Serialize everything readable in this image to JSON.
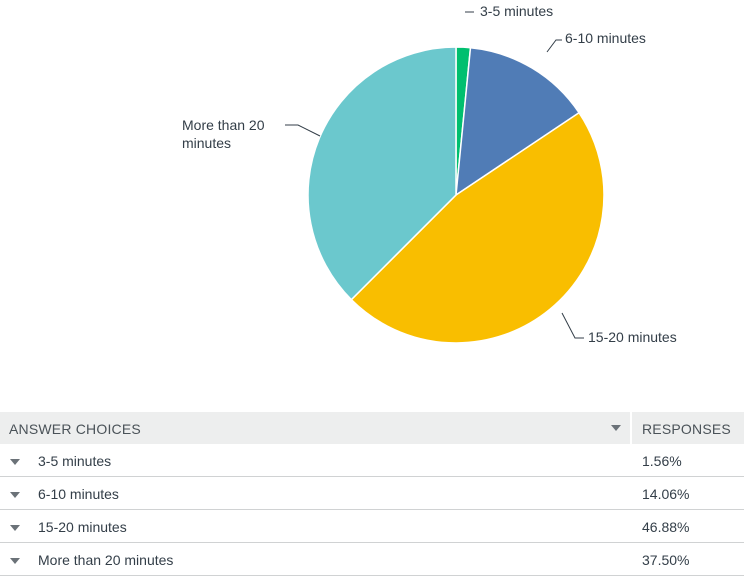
{
  "chart_data": {
    "type": "pie",
    "labels": [
      "3-5 minutes",
      "6-10 minutes",
      "15-20 minutes",
      "More than 20 minutes"
    ],
    "values": [
      1.56,
      14.06,
      46.88,
      37.5
    ],
    "colors": [
      "#00bf6f",
      "#507cb6",
      "#f9be00",
      "#6bc8cd"
    ],
    "start": "12 o'clock, clockwise"
  },
  "table": {
    "header": {
      "choices": "ANSWER CHOICES",
      "responses": "RESPONSES"
    },
    "rows": [
      {
        "choice": "3-5 minutes",
        "response": "1.56%"
      },
      {
        "choice": "6-10 minutes",
        "response": "14.06%"
      },
      {
        "choice": "15-20 minutes",
        "response": "46.88%"
      },
      {
        "choice": "More than 20 minutes",
        "response": "37.50%"
      }
    ],
    "icons": {
      "sort": "sort-caret-icon",
      "expand": "expand-caret-icon"
    }
  }
}
